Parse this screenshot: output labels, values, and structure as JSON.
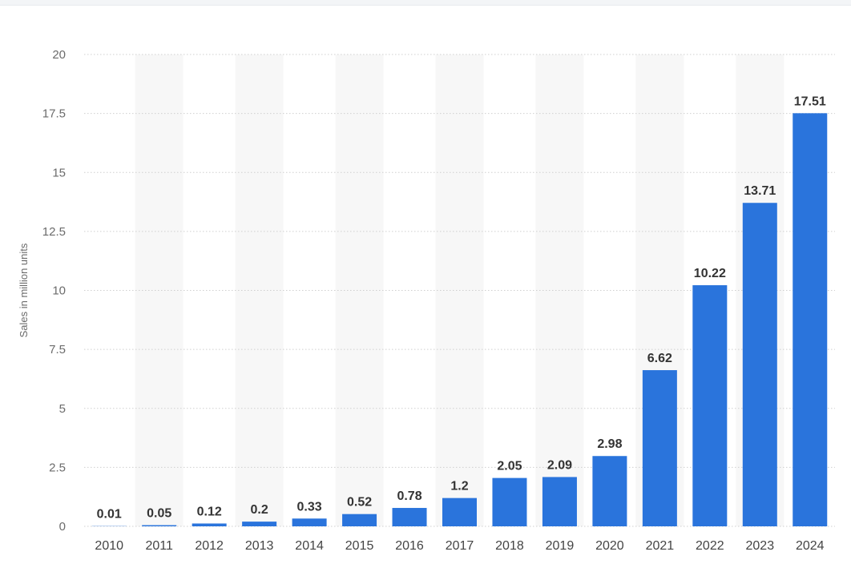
{
  "chart_data": {
    "type": "bar",
    "title": "",
    "xlabel": "",
    "ylabel": "Sales in million units",
    "ylim": [
      0,
      20
    ],
    "yticks": [
      0,
      2.5,
      5,
      7.5,
      10,
      12.5,
      15,
      17.5,
      20
    ],
    "ytick_labels": [
      "0",
      "2.5",
      "5",
      "7.5",
      "10",
      "12.5",
      "15",
      "17.5",
      "20"
    ],
    "categories": [
      "2010",
      "2011",
      "2012",
      "2013",
      "2014",
      "2015",
      "2016",
      "2017",
      "2018",
      "2019",
      "2020",
      "2021",
      "2022",
      "2023",
      "2024"
    ],
    "values": [
      0.01,
      0.05,
      0.12,
      0.2,
      0.33,
      0.52,
      0.78,
      1.2,
      2.05,
      2.09,
      2.98,
      6.62,
      10.22,
      13.71,
      17.51
    ],
    "value_labels": [
      "0.01",
      "0.05",
      "0.12",
      "0.2",
      "0.33",
      "0.52",
      "0.78",
      "1.2",
      "2.05",
      "2.09",
      "2.98",
      "6.62",
      "10.22",
      "13.71",
      "17.51"
    ],
    "grid": true,
    "alternating_column_bands": true,
    "colors": {
      "bar": "#2a74dc",
      "band": "#f7f7f7",
      "grid": "#cfcfcf"
    }
  }
}
